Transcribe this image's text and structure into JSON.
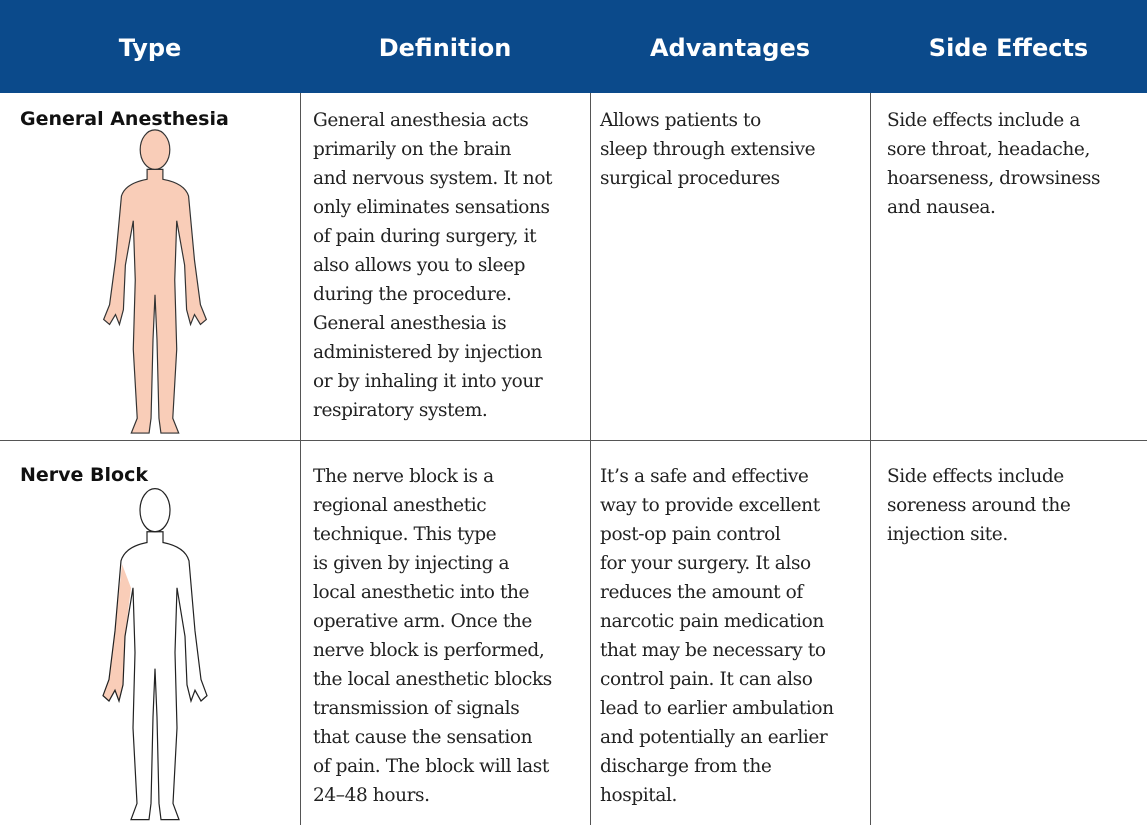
{
  "table": {
    "headers": [
      "Type",
      "Definition",
      "Advantages",
      "Side Effects"
    ],
    "rows": [
      {
        "type": "General Anesthesia",
        "definition": [
          "General anesthesia acts",
          "primarily on the brain",
          "and nervous system. It not",
          "only eliminates sensations",
          "of pain during surgery, it",
          "also allows you to sleep",
          "during the procedure.",
          "General anesthesia is",
          "administered by injection",
          "or by inhaling it into your",
          "respiratory system."
        ],
        "advantages": [
          "Allows patients to",
          "sleep through extensive",
          "surgical procedures"
        ],
        "side_effects": [
          "Side effects include a",
          "sore throat, headache,",
          "hoarseness, drowsiness",
          "and nausea."
        ]
      },
      {
        "type": "Nerve Block",
        "definition": [
          "The nerve block is a",
          "regional anesthetic",
          "technique. This type",
          "is given by injecting a",
          "local anesthetic into the",
          "operative arm. Once the",
          "nerve block is performed,",
          "the local anesthetic blocks",
          "transmission of signals",
          "that cause the sensation",
          "of pain. The block will last",
          "24–48 hours."
        ],
        "advantages": [
          "It’s a safe and effective",
          "way to provide excellent",
          "post-op pain control",
          "for your surgery. It also",
          "reduces the amount of",
          "narcotic pain medication",
          "that may be necessary to",
          "control pain. It can also",
          "lead to earlier ambulation",
          "and potentially an earlier",
          "discharge from the",
          "hospital."
        ],
        "side_effects": [
          "Side effects include",
          "soreness around the",
          "injection site."
        ]
      }
    ]
  }
}
